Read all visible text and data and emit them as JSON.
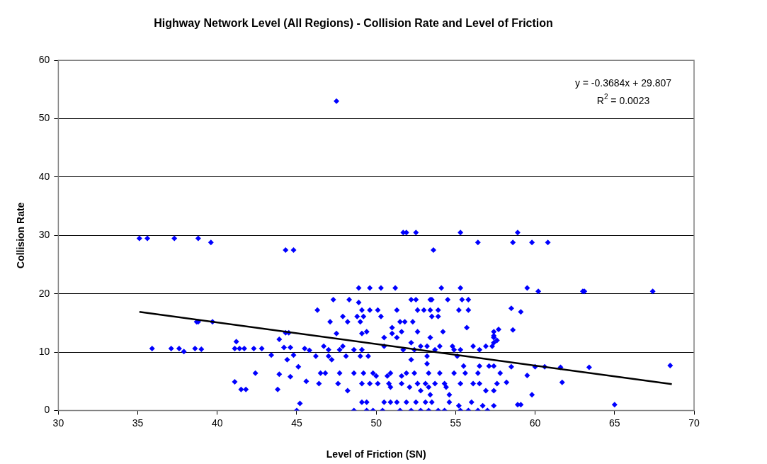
{
  "chart_data": {
    "type": "scatter",
    "title": "Highway Network Level (All Regions) - Collision Rate and Level of Friction",
    "xlabel": "Level of Friction (SN)",
    "ylabel": "Collision Rate",
    "xlim": [
      30,
      70
    ],
    "xticks": [
      30,
      35,
      40,
      45,
      50,
      55,
      60,
      65,
      70
    ],
    "ylim": [
      0,
      60
    ],
    "yticks": [
      0,
      10,
      20,
      30,
      40,
      50,
      60
    ],
    "grid": "y",
    "annotations": [
      "y = -0.3684x + 29.807",
      "R$^{2}$ = 0.0023"
    ],
    "series": [
      {
        "color": "#0000ff",
        "marker": "diamond",
        "x": [
          35.1,
          35.6,
          37.3,
          38.8,
          39.6,
          44.3,
          44.8,
          47.5,
          51.7,
          51.9,
          52.5,
          55.3,
          56.4,
          58.6,
          58.9,
          59.8,
          60.8,
          53.6,
          59.5,
          60.2,
          63,
          63.1,
          67.4,
          57.7,
          58.5,
          59.1,
          57.4,
          57.6,
          58.6,
          68.5,
          65,
          63.4,
          61.6,
          61.7,
          60.6,
          60,
          59.5,
          59.8,
          58.9,
          59.1,
          58.2,
          58.5,
          35.9,
          37.1,
          37.6,
          37.9,
          38.6,
          39,
          38.7,
          38.8,
          39.7,
          41.1,
          41.2,
          41.1,
          41.4,
          41.7,
          41.5,
          41.8,
          42.4,
          42.3,
          42.8,
          43.4,
          43.9,
          44.2,
          44.6,
          44.3,
          44.5,
          43.8,
          43.9,
          44.6,
          44.4,
          45,
          45.2,
          44.8,
          45.1,
          45.5,
          45.6,
          45.8,
          48.9,
          49.6,
          50.3,
          51.2,
          54.1,
          55.3,
          47.3,
          48.3,
          48.9,
          52.2,
          52.5,
          53.4,
          53.5,
          54.5,
          55.4,
          55.8,
          46.3,
          49.1,
          49.6,
          50.1,
          51.3,
          52.6,
          53,
          53.4,
          53.9,
          55.2,
          55.8,
          47.9,
          48.8,
          49.2,
          50.3,
          53.5,
          53.9,
          47.1,
          48.2,
          49,
          51.5,
          51.8,
          52.3,
          51,
          55.7,
          49.4,
          51.6,
          52.6,
          54.2,
          57.4,
          47.5,
          49.1,
          51,
          50.5,
          51.3,
          53.4,
          57.4,
          52.2,
          57.4,
          46.7,
          47.9,
          50.5,
          52.8,
          53.2,
          54,
          54.8,
          56.1,
          56.9,
          57.3,
          47,
          47.7,
          48.6,
          49.1,
          51.7,
          52.4,
          53.7,
          54.9,
          55.3,
          56.5,
          46.2,
          47,
          48.1,
          49,
          49.5,
          53.2,
          55.1,
          52.2,
          47.2,
          53.2,
          56.5,
          57.1,
          57.4,
          55.5,
          46.5,
          46.8,
          47.7,
          48.6,
          49.2,
          49.8,
          50.9,
          51.9,
          52.4,
          53.3,
          54,
          54.9,
          55.6,
          56.4,
          57.8,
          50,
          50.7,
          51.6,
          46.4,
          47.6,
          49.1,
          49.6,
          50.1,
          50.8,
          51.6,
          52.6,
          53.1,
          53.7,
          54.3,
          55.3,
          56.1,
          56.5,
          57.6,
          50.9,
          52.1,
          53.3,
          54.4,
          48.2,
          52.8,
          56.9,
          57.4,
          53.4,
          54.6,
          49.1,
          49.4,
          50.5,
          50.9,
          51.3,
          51.9,
          52.5,
          53.1,
          53.5,
          54.6,
          56,
          55.2,
          56.7,
          57.4,
          48.6,
          49.4,
          49.8,
          50.4,
          51.5,
          52.2,
          52.8,
          53.3,
          53.9,
          54.3,
          55.3,
          55.8,
          56.4,
          57
        ],
        "values": [
          29.5,
          29.5,
          29.5,
          29.5,
          28.8,
          27.5,
          27.5,
          53,
          30.5,
          30.5,
          30.5,
          30.5,
          28.8,
          28.8,
          30.5,
          28.8,
          28.8,
          27.5,
          21,
          20.4,
          20.4,
          20.4,
          20.4,
          13.9,
          17.5,
          16.9,
          12.8,
          12,
          13.8,
          7.7,
          1,
          7.4,
          7.4,
          4.8,
          7.5,
          7.5,
          6,
          2.7,
          1,
          1,
          4.8,
          7.5,
          10.6,
          10.6,
          10.6,
          10.1,
          10.6,
          10.5,
          15.2,
          15.2,
          15.2,
          4.9,
          11.8,
          10.6,
          10.6,
          10.6,
          3.6,
          3.6,
          6.4,
          10.6,
          10.6,
          9.5,
          12.2,
          10.8,
          10.8,
          13.3,
          13.3,
          3.6,
          6.2,
          5.8,
          8.7,
          0,
          1.2,
          9.5,
          7.5,
          10.6,
          5,
          10.3,
          21,
          21,
          21,
          21,
          21,
          21,
          19,
          19,
          18.5,
          19,
          19,
          19,
          19,
          19,
          19,
          19,
          17.2,
          17.2,
          17.2,
          17.2,
          17.2,
          17.2,
          17.2,
          17.2,
          17.2,
          17.2,
          17.2,
          16.1,
          16.1,
          16.1,
          16.1,
          16.1,
          16.1,
          15.2,
          15.2,
          15.2,
          15.2,
          15.2,
          15.2,
          14.2,
          14.2,
          13.5,
          13.5,
          13.5,
          13.5,
          13.5,
          13.2,
          13.2,
          13.2,
          12.5,
          12.5,
          12.5,
          12.5,
          11.6,
          11.6,
          11,
          11,
          11,
          11,
          11,
          11,
          11,
          11,
          11,
          11,
          10.4,
          10.4,
          10.4,
          10.4,
          10.4,
          10.4,
          10.4,
          10.4,
          10.4,
          10.4,
          9.3,
          9.3,
          9.3,
          9.3,
          9.3,
          9.3,
          9.3,
          8.7,
          8.7,
          8,
          7.6,
          7.6,
          7.6,
          7.6,
          6.4,
          6.4,
          6.4,
          6.4,
          6.4,
          6.4,
          6.4,
          6.4,
          6.4,
          6.4,
          6.4,
          6.4,
          6.4,
          6.4,
          6.4,
          5.9,
          5.9,
          5.9,
          4.6,
          4.6,
          4.6,
          4.6,
          4.6,
          4.6,
          4.6,
          4.6,
          4.6,
          4.6,
          4.6,
          4.6,
          4.6,
          4.6,
          4.6,
          4,
          4,
          4,
          4,
          3.4,
          3.4,
          3.4,
          3.4,
          2.7,
          2.7,
          1.4,
          1.4,
          1.4,
          1.4,
          1.4,
          1.4,
          1.4,
          1.4,
          1.4,
          1.4,
          1.4,
          0.8,
          0.8,
          0.8,
          0,
          0,
          0,
          0,
          0,
          0,
          0,
          0,
          0,
          0,
          0,
          0,
          0,
          0
        ]
      },
      {
        "type": "line",
        "color": "#000000",
        "x": [
          35.1,
          68.6
        ],
        "values": [
          16.9,
          4.5
        ]
      }
    ]
  }
}
